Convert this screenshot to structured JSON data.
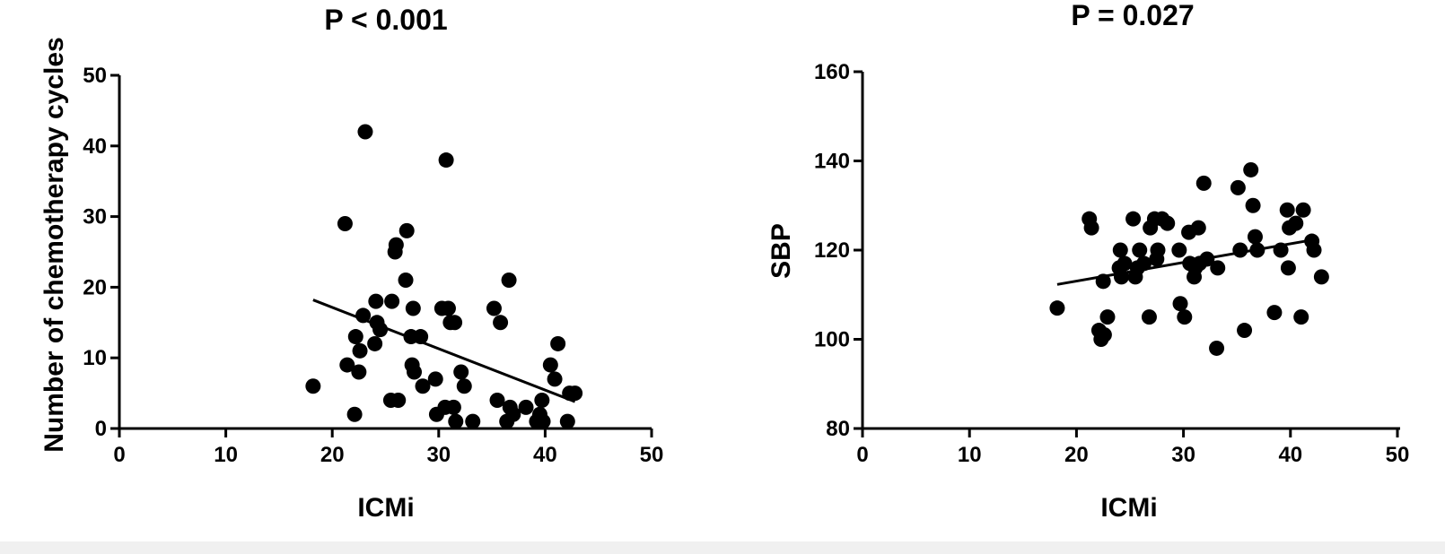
{
  "colors": {
    "point": "#000000",
    "line": "#000000",
    "axis": "#000000",
    "background": "#ffffff"
  },
  "chart_data": [
    {
      "type": "scatter",
      "title": "P < 0.001",
      "xlabel": "ICMi",
      "ylabel": "Number of chemotherapy cycles",
      "xlim": [
        0,
        50
      ],
      "ylim": [
        0,
        50
      ],
      "xticks": [
        0,
        10,
        20,
        30,
        40,
        50
      ],
      "yticks": [
        0,
        10,
        20,
        30,
        40,
        50
      ],
      "grid": false,
      "regression_line": {
        "x": [
          18.2,
          42.8
        ],
        "y": [
          18.2,
          3.8
        ]
      },
      "points": [
        [
          18.2,
          6
        ],
        [
          21.2,
          29
        ],
        [
          21.4,
          9
        ],
        [
          22.1,
          2
        ],
        [
          22.2,
          13
        ],
        [
          22.5,
          8
        ],
        [
          22.6,
          11
        ],
        [
          22.9,
          16
        ],
        [
          23.1,
          42
        ],
        [
          24.0,
          12
        ],
        [
          24.1,
          18
        ],
        [
          24.2,
          15
        ],
        [
          24.5,
          14
        ],
        [
          25.5,
          4
        ],
        [
          25.6,
          18
        ],
        [
          25.9,
          25
        ],
        [
          26.0,
          26
        ],
        [
          26.2,
          4
        ],
        [
          26.9,
          21
        ],
        [
          27.0,
          28
        ],
        [
          27.4,
          13
        ],
        [
          27.5,
          9
        ],
        [
          27.6,
          17
        ],
        [
          27.7,
          8
        ],
        [
          28.3,
          13
        ],
        [
          28.5,
          6
        ],
        [
          29.7,
          7
        ],
        [
          29.8,
          2
        ],
        [
          30.3,
          17
        ],
        [
          30.6,
          3
        ],
        [
          30.7,
          38
        ],
        [
          30.9,
          17
        ],
        [
          31.1,
          15
        ],
        [
          31.4,
          3
        ],
        [
          31.5,
          15
        ],
        [
          31.6,
          1
        ],
        [
          32.1,
          8
        ],
        [
          32.4,
          6
        ],
        [
          33.2,
          1
        ],
        [
          35.2,
          17
        ],
        [
          35.5,
          4
        ],
        [
          35.8,
          15
        ],
        [
          36.4,
          1
        ],
        [
          36.6,
          21
        ],
        [
          36.7,
          3
        ],
        [
          37.0,
          2
        ],
        [
          38.2,
          3
        ],
        [
          39.2,
          1
        ],
        [
          39.5,
          2
        ],
        [
          39.7,
          4
        ],
        [
          39.8,
          1
        ],
        [
          40.5,
          9
        ],
        [
          40.9,
          7
        ],
        [
          41.2,
          12
        ],
        [
          42.1,
          1
        ],
        [
          42.3,
          5
        ],
        [
          42.8,
          5
        ]
      ]
    },
    {
      "type": "scatter",
      "title": "P = 0.027",
      "xlabel": "ICMi",
      "ylabel": "SBP",
      "xlim": [
        0,
        50
      ],
      "ylim": [
        80,
        160
      ],
      "xticks": [
        0,
        10,
        20,
        30,
        40,
        50
      ],
      "yticks": [
        80,
        100,
        120,
        140,
        160
      ],
      "grid": false,
      "regression_line": {
        "x": [
          18.2,
          42.1
        ],
        "y": [
          112.3,
          122.3
        ]
      },
      "points": [
        [
          18.2,
          107
        ],
        [
          21.2,
          127
        ],
        [
          21.4,
          125
        ],
        [
          22.1,
          102
        ],
        [
          22.3,
          100
        ],
        [
          22.5,
          113
        ],
        [
          22.6,
          101
        ],
        [
          22.9,
          105
        ],
        [
          24.0,
          116
        ],
        [
          24.1,
          120
        ],
        [
          24.2,
          114
        ],
        [
          24.5,
          117
        ],
        [
          25.3,
          127
        ],
        [
          25.5,
          114
        ],
        [
          25.7,
          116
        ],
        [
          25.9,
          120
        ],
        [
          26.3,
          117
        ],
        [
          26.8,
          105
        ],
        [
          26.9,
          125
        ],
        [
          27.3,
          127
        ],
        [
          27.5,
          118
        ],
        [
          27.6,
          120
        ],
        [
          28.0,
          127
        ],
        [
          28.5,
          126
        ],
        [
          29.6,
          120
        ],
        [
          29.7,
          108
        ],
        [
          30.1,
          105
        ],
        [
          30.5,
          124
        ],
        [
          30.6,
          117
        ],
        [
          31.0,
          114
        ],
        [
          31.1,
          116
        ],
        [
          31.4,
          125
        ],
        [
          31.5,
          117
        ],
        [
          31.9,
          135
        ],
        [
          32.2,
          118
        ],
        [
          33.1,
          98
        ],
        [
          33.2,
          116
        ],
        [
          35.1,
          134
        ],
        [
          35.3,
          120
        ],
        [
          35.7,
          102
        ],
        [
          36.3,
          138
        ],
        [
          36.5,
          130
        ],
        [
          36.7,
          123
        ],
        [
          36.9,
          120
        ],
        [
          38.5,
          106
        ],
        [
          39.1,
          120
        ],
        [
          39.7,
          129
        ],
        [
          39.8,
          116
        ],
        [
          39.9,
          125
        ],
        [
          40.5,
          126
        ],
        [
          41.0,
          105
        ],
        [
          41.2,
          129
        ],
        [
          42.0,
          122
        ],
        [
          42.2,
          120
        ],
        [
          42.9,
          114
        ]
      ]
    }
  ]
}
